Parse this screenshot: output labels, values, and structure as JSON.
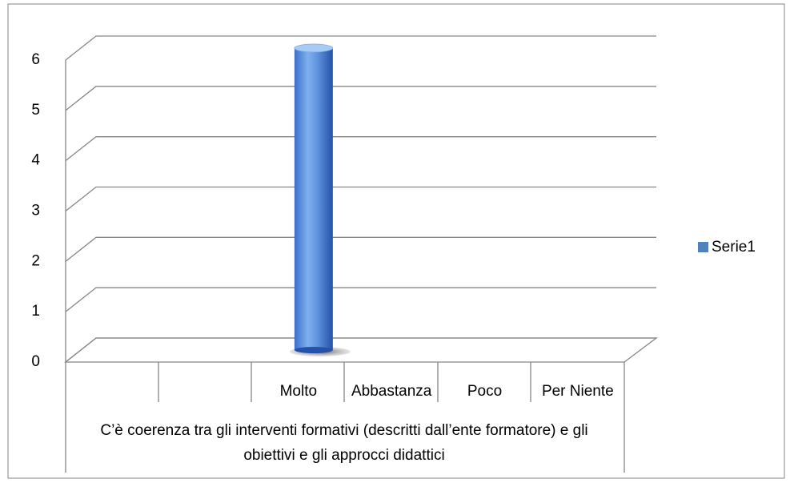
{
  "chart_data": {
    "type": "bar3d",
    "categories": [
      null,
      null,
      "Molto",
      "Abbastanza",
      "Poco",
      "Per Niente"
    ],
    "group_label": "C’è coerenza tra gli interventi formativi (descritti dall’ente formatore) e gli obiettivi e gli approcci didattici",
    "series": [
      {
        "name": "Serie1",
        "color": "#4f81bd",
        "values": [
          null,
          null,
          6,
          0,
          0,
          0
        ]
      }
    ],
    "ylim": [
      0,
      6
    ],
    "yticks": [
      0,
      1,
      2,
      3,
      4,
      5,
      6
    ],
    "grid": true,
    "legend": "right"
  }
}
